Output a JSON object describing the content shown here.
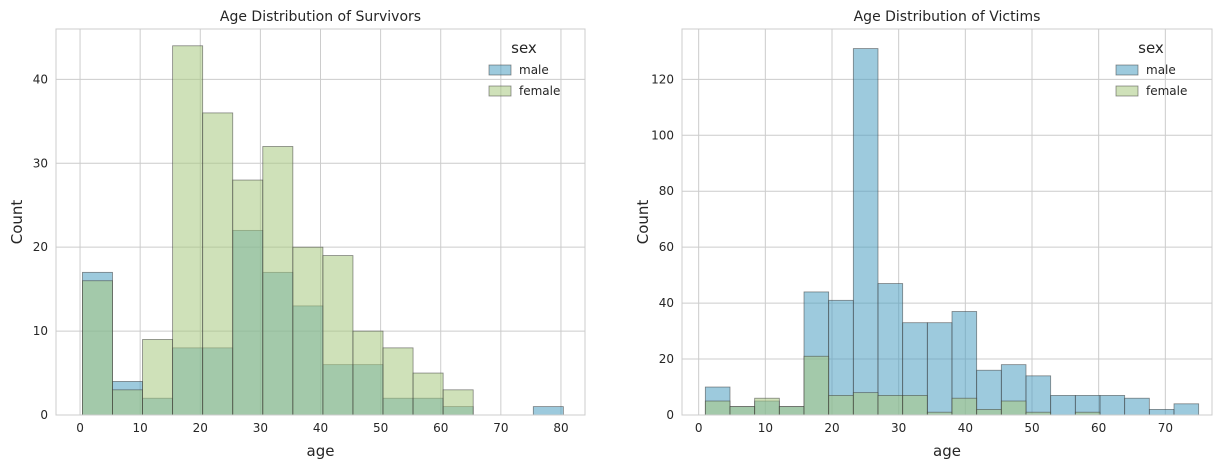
{
  "chart_data": [
    {
      "type": "histogram",
      "title": "Age Distribution of Survivors",
      "xlabel": "age",
      "ylabel": "Count",
      "xlim": [
        -4,
        84
      ],
      "ylim": [
        0,
        46
      ],
      "xticks": [
        0,
        10,
        20,
        30,
        40,
        50,
        60,
        70,
        80
      ],
      "yticks": [
        0,
        10,
        20,
        30,
        40
      ],
      "grid": true,
      "legend": {
        "title": "sex",
        "placement": "top-right",
        "entries": [
          "male",
          "female"
        ]
      },
      "series": [
        {
          "name": "male",
          "color": "#4c9fc1",
          "bins": [
            {
              "x0": 0.4,
              "x1": 5.4,
              "count": 17
            },
            {
              "x0": 5.4,
              "x1": 10.4,
              "count": 4
            },
            {
              "x0": 10.4,
              "x1": 15.4,
              "count": 2
            },
            {
              "x0": 15.4,
              "x1": 20.4,
              "count": 8
            },
            {
              "x0": 20.4,
              "x1": 25.4,
              "count": 8
            },
            {
              "x0": 25.4,
              "x1": 30.4,
              "count": 22
            },
            {
              "x0": 30.4,
              "x1": 35.4,
              "count": 17
            },
            {
              "x0": 35.4,
              "x1": 40.4,
              "count": 13
            },
            {
              "x0": 40.4,
              "x1": 45.4,
              "count": 6
            },
            {
              "x0": 45.4,
              "x1": 50.4,
              "count": 6
            },
            {
              "x0": 50.4,
              "x1": 55.4,
              "count": 2
            },
            {
              "x0": 55.4,
              "x1": 60.4,
              "count": 2
            },
            {
              "x0": 60.4,
              "x1": 65.4,
              "count": 1
            },
            {
              "x0": 75.4,
              "x1": 80.4,
              "count": 1
            }
          ]
        },
        {
          "name": "female",
          "color": "#a8c880",
          "bins": [
            {
              "x0": 0.4,
              "x1": 5.4,
              "count": 16
            },
            {
              "x0": 5.4,
              "x1": 10.4,
              "count": 3
            },
            {
              "x0": 10.4,
              "x1": 15.4,
              "count": 9
            },
            {
              "x0": 15.4,
              "x1": 20.4,
              "count": 44
            },
            {
              "x0": 20.4,
              "x1": 25.4,
              "count": 36
            },
            {
              "x0": 25.4,
              "x1": 30.4,
              "count": 28
            },
            {
              "x0": 30.4,
              "x1": 35.4,
              "count": 32
            },
            {
              "x0": 35.4,
              "x1": 40.4,
              "count": 20
            },
            {
              "x0": 40.4,
              "x1": 45.4,
              "count": 19
            },
            {
              "x0": 45.4,
              "x1": 50.4,
              "count": 10
            },
            {
              "x0": 50.4,
              "x1": 55.4,
              "count": 8
            },
            {
              "x0": 55.4,
              "x1": 60.4,
              "count": 5
            },
            {
              "x0": 60.4,
              "x1": 65.4,
              "count": 3
            }
          ]
        }
      ]
    },
    {
      "type": "histogram",
      "title": "Age Distribution of Victims",
      "xlabel": "age",
      "ylabel": "Count",
      "xlim": [
        -2.5,
        77
      ],
      "ylim": [
        0,
        138
      ],
      "xticks": [
        0,
        10,
        20,
        30,
        40,
        50,
        60,
        70
      ],
      "yticks": [
        0,
        20,
        40,
        60,
        80,
        100,
        120
      ],
      "grid": true,
      "legend": {
        "title": "sex",
        "placement": "top-right",
        "entries": [
          "male",
          "female"
        ]
      },
      "series": [
        {
          "name": "male",
          "color": "#4c9fc1",
          "bins": [
            {
              "x0": 1,
              "x1": 4.7,
              "count": 10
            },
            {
              "x0": 4.7,
              "x1": 8.4,
              "count": 3
            },
            {
              "x0": 8.4,
              "x1": 12.1,
              "count": 5
            },
            {
              "x0": 12.1,
              "x1": 15.8,
              "count": 3
            },
            {
              "x0": 15.8,
              "x1": 19.5,
              "count": 44
            },
            {
              "x0": 19.5,
              "x1": 23.2,
              "count": 41
            },
            {
              "x0": 23.2,
              "x1": 26.9,
              "count": 131
            },
            {
              "x0": 26.9,
              "x1": 30.6,
              "count": 47
            },
            {
              "x0": 30.6,
              "x1": 34.3,
              "count": 33
            },
            {
              "x0": 34.3,
              "x1": 38,
              "count": 33
            },
            {
              "x0": 38,
              "x1": 41.7,
              "count": 37
            },
            {
              "x0": 41.7,
              "x1": 45.4,
              "count": 16
            },
            {
              "x0": 45.4,
              "x1": 49.1,
              "count": 18
            },
            {
              "x0": 49.1,
              "x1": 52.8,
              "count": 14
            },
            {
              "x0": 52.8,
              "x1": 56.5,
              "count": 7
            },
            {
              "x0": 56.5,
              "x1": 60.2,
              "count": 7
            },
            {
              "x0": 60.2,
              "x1": 63.9,
              "count": 7
            },
            {
              "x0": 63.9,
              "x1": 67.6,
              "count": 6
            },
            {
              "x0": 67.6,
              "x1": 71.3,
              "count": 2
            },
            {
              "x0": 71.3,
              "x1": 75,
              "count": 4
            }
          ]
        },
        {
          "name": "female",
          "color": "#a8c880",
          "bins": [
            {
              "x0": 1,
              "x1": 4.7,
              "count": 5
            },
            {
              "x0": 4.7,
              "x1": 8.4,
              "count": 3
            },
            {
              "x0": 8.4,
              "x1": 12.1,
              "count": 6
            },
            {
              "x0": 12.1,
              "x1": 15.8,
              "count": 3
            },
            {
              "x0": 15.8,
              "x1": 19.5,
              "count": 21
            },
            {
              "x0": 19.5,
              "x1": 23.2,
              "count": 7
            },
            {
              "x0": 23.2,
              "x1": 26.9,
              "count": 8
            },
            {
              "x0": 26.9,
              "x1": 30.6,
              "count": 7
            },
            {
              "x0": 30.6,
              "x1": 34.3,
              "count": 7
            },
            {
              "x0": 34.3,
              "x1": 38,
              "count": 1
            },
            {
              "x0": 38,
              "x1": 41.7,
              "count": 6
            },
            {
              "x0": 41.7,
              "x1": 45.4,
              "count": 2
            },
            {
              "x0": 45.4,
              "x1": 49.1,
              "count": 5
            },
            {
              "x0": 49.1,
              "x1": 52.8,
              "count": 1
            },
            {
              "x0": 56.5,
              "x1": 60.2,
              "count": 1
            }
          ]
        }
      ]
    }
  ]
}
